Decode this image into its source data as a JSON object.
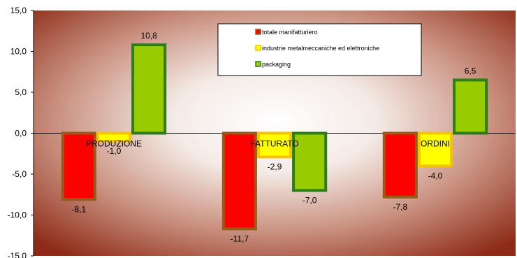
{
  "chart_data": {
    "type": "bar",
    "categories": [
      "PRODUZIONE",
      "FATTURATO",
      "ORDINI"
    ],
    "series": [
      {
        "name": "totale manifatturiero",
        "values": [
          -8.1,
          -11.7,
          -7.8
        ],
        "labels": [
          "-8,1",
          "-11,7",
          "-7,8"
        ],
        "fill": "#ff0000",
        "stroke": "#9a5a1c"
      },
      {
        "name": "industrie metalmeccaniche ed elettroniche",
        "values": [
          -1.0,
          -2.9,
          -4.0
        ],
        "labels": [
          "-1,0",
          "-2,9",
          "-4,0"
        ],
        "fill": "#ffff00",
        "stroke": "#f5c400"
      },
      {
        "name": "packaging",
        "values": [
          10.8,
          -7.0,
          6.5
        ],
        "labels": [
          "10,8",
          "-7,0",
          "6,5"
        ],
        "fill": "#99cc00",
        "stroke": "#2e7d1a"
      }
    ],
    "ylim": [
      -15,
      15
    ],
    "yticks": [
      15,
      10,
      5,
      0,
      -5,
      -10,
      -15
    ],
    "ytick_labels": [
      "15,0",
      "10,0",
      "5,0",
      "0,0",
      "-5,0",
      "-10,0",
      "-15,0"
    ],
    "legend_position": "top-center",
    "grid": false
  }
}
